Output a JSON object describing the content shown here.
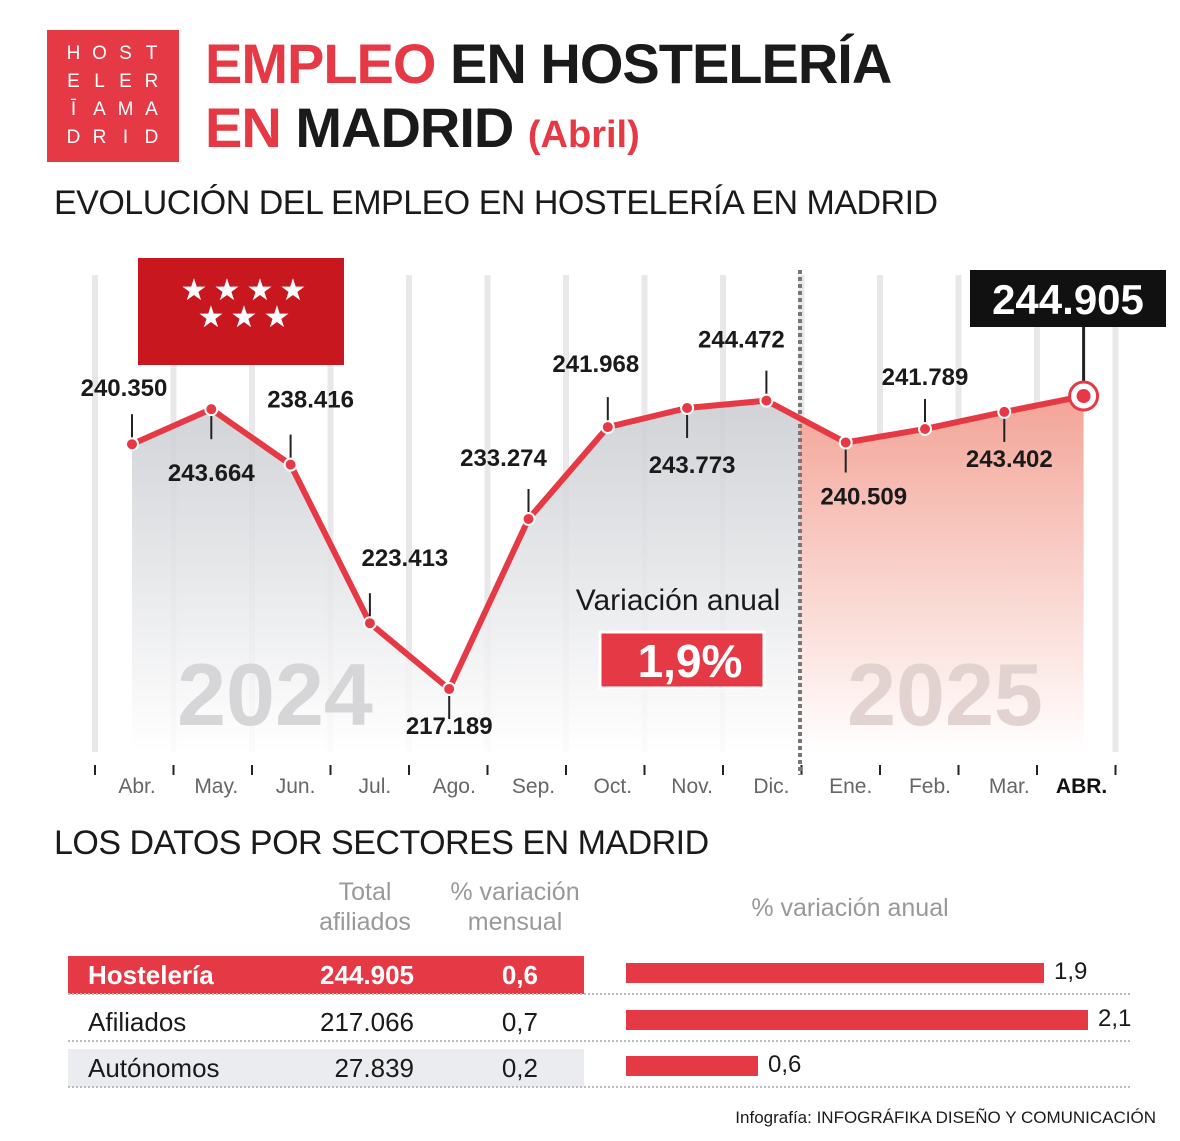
{
  "logo": {
    "letters": [
      "H",
      "O",
      "S",
      "T",
      "E",
      "L",
      "E",
      "R",
      "Ī",
      "A",
      "M",
      "A",
      "D",
      "R",
      "I",
      "D"
    ]
  },
  "header": {
    "title_red": "EMPLEO",
    "title_rest": " EN HOSTELERÍA",
    "title_line2_red": "EN",
    "title_line2": " MADRID ",
    "title_month": "(Abril)"
  },
  "section1": "EVOLUCIÓN DEL EMPLEO EN HOSTELERÍA EN MADRID",
  "section2": "LOS DATOS POR SECTORES EN MADRID",
  "chart_data": {
    "type": "line",
    "categories": [
      "Abr.",
      "May.",
      "Jun.",
      "Jul.",
      "Ago.",
      "Sep.",
      "Oct.",
      "Nov.",
      "Dic.",
      "Ene.",
      "Feb.",
      "Mar.",
      "ABR."
    ],
    "values": [
      240.35,
      243.664,
      238.416,
      223.413,
      217.189,
      233.274,
      241.968,
      243.773,
      244.472,
      240.509,
      241.789,
      243.402,
      244.905
    ],
    "labels": [
      "240.350",
      "243.664",
      "238.416",
      "223.413",
      "217.189",
      "233.274",
      "241.968",
      "243.773",
      "244.472",
      "240.509",
      "241.789",
      "243.402",
      "244.905"
    ],
    "year_labels": [
      "2024",
      "2025"
    ],
    "annotation": {
      "label": "Variación anual",
      "value": "1,9%"
    },
    "colors": {
      "line": "#e63946",
      "area_2024": "#d0d2d6",
      "area_2025": "#f4a79c"
    }
  },
  "table": {
    "headers": {
      "total": "Total\nafiliados",
      "mensual": "% variación\nmensual",
      "anual": "% variación anual"
    },
    "rows": [
      {
        "name": "Hostelería",
        "total": "244.905",
        "mensual": "0,6",
        "anual": 1.9,
        "anual_label": "1,9"
      },
      {
        "name": "Afiliados",
        "total": "217.066",
        "mensual": "0,7",
        "anual": 2.1,
        "anual_label": "2,1"
      },
      {
        "name": "Autónomos",
        "total": "27.839",
        "mensual": "0,2",
        "anual": 0.6,
        "anual_label": "0,6"
      }
    ]
  },
  "footer": {
    "prefix": "Infografía: ",
    "credit": "INFOGRÁFIKA DISEÑO Y COMUNICACIÓN"
  }
}
